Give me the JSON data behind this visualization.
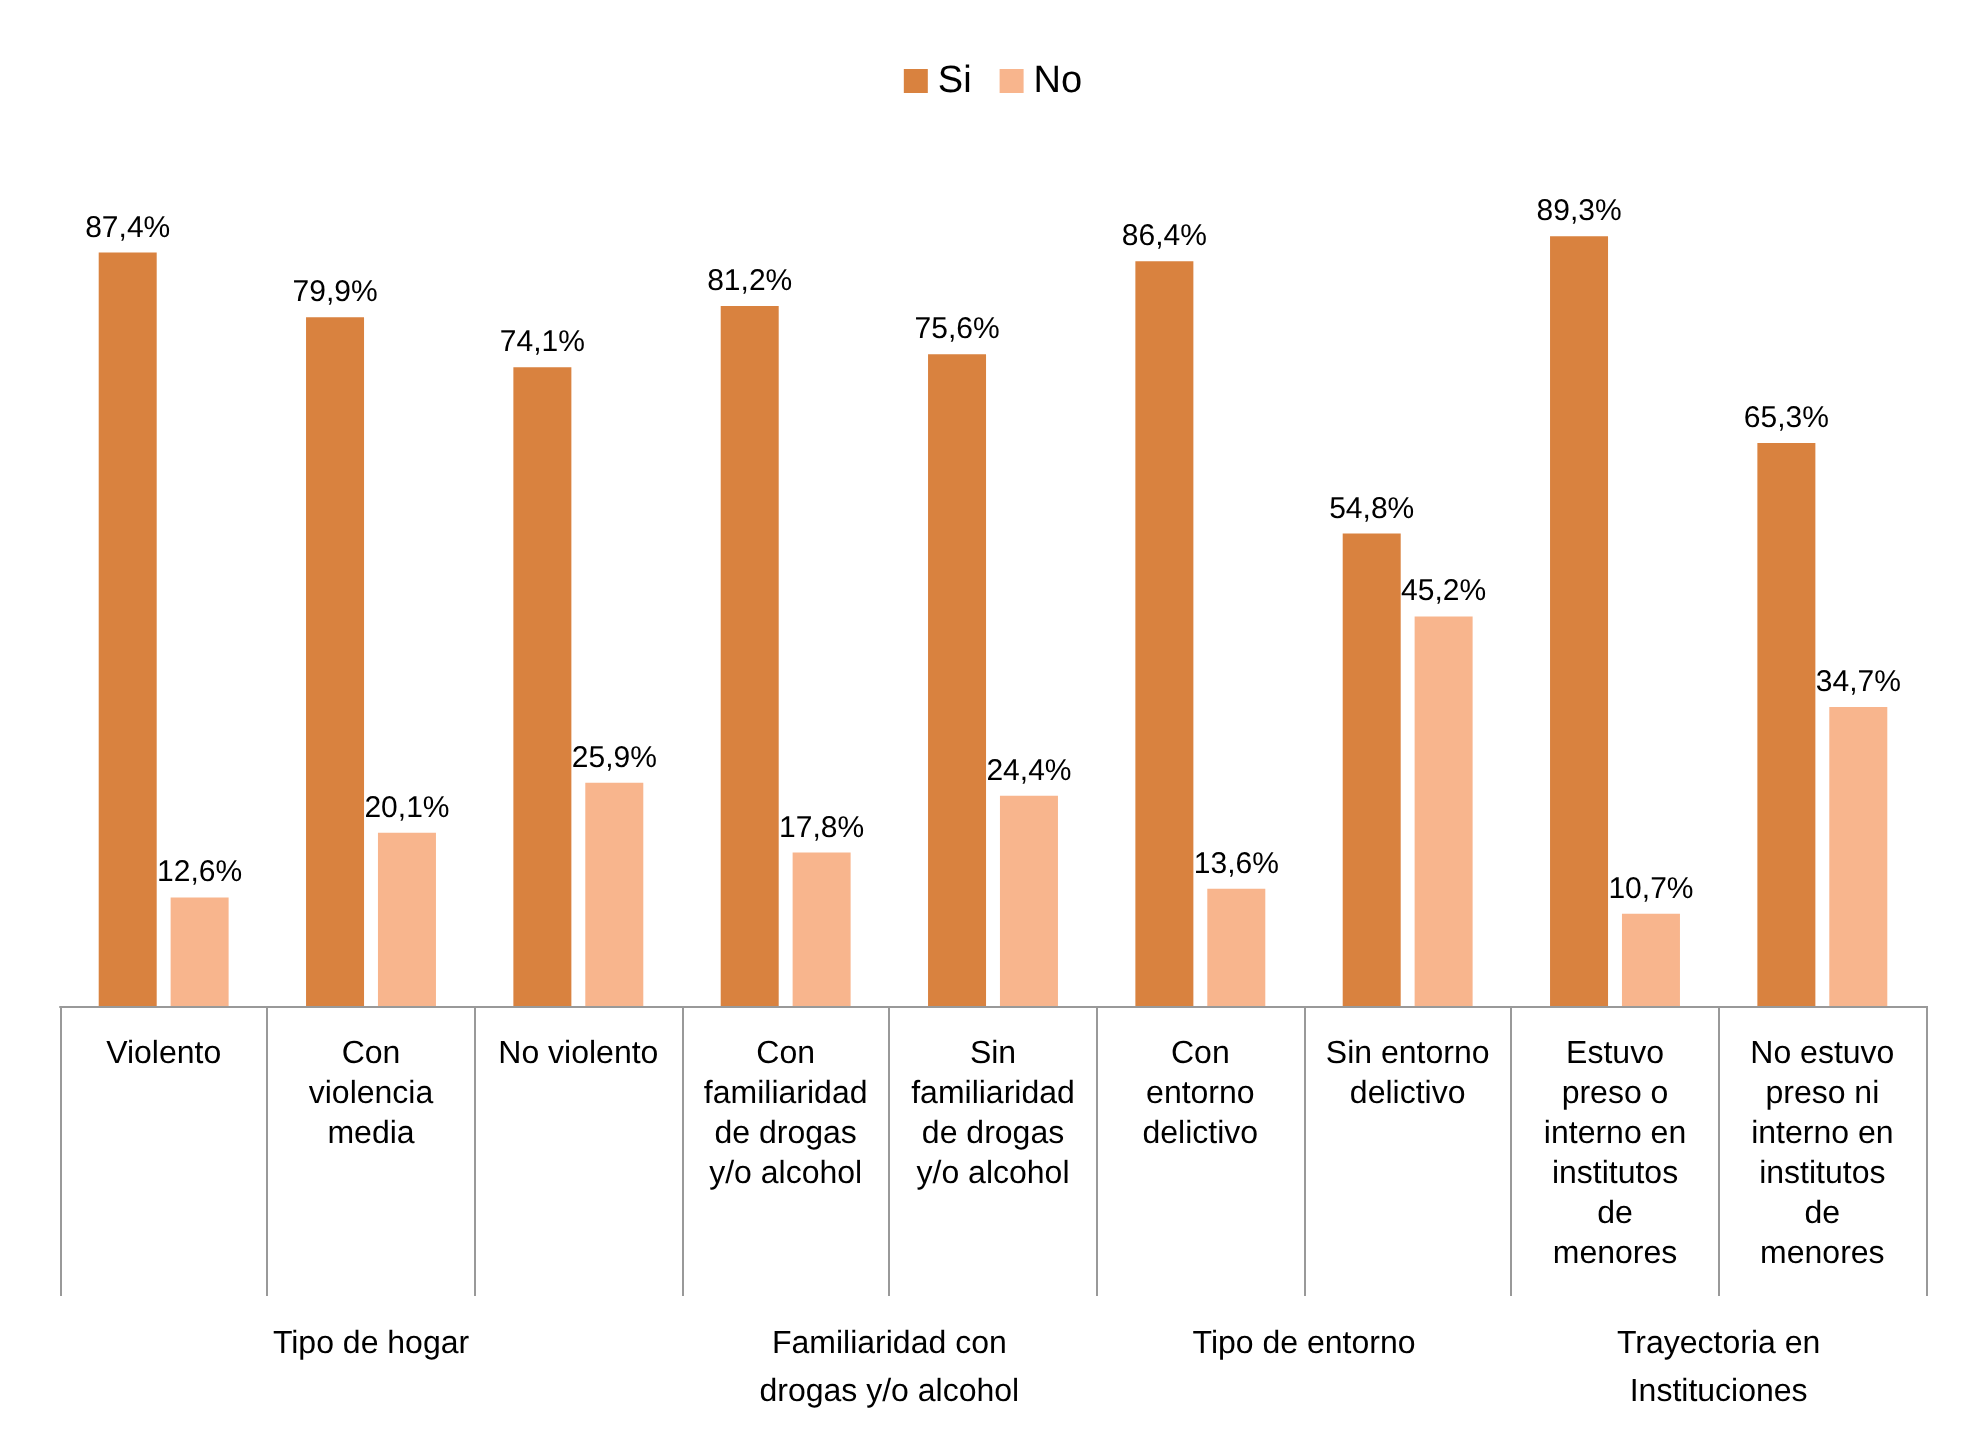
{
  "chart_data": {
    "type": "bar",
    "categories": [
      "Violento",
      "Con\nviolencia\nmedia",
      "No violento",
      "Con\nfamiliaridad\nde drogas\ny/o alcohol",
      "Sin\nfamiliaridad\nde drogas\ny/o alcohol",
      "Con\nentorno\ndelictivo",
      "Sin entorno\ndelictivo",
      "Estuvo\npreso o\ninterno en\ninstitutos\nde\nmenores",
      "No estuvo\npreso ni\ninterno en\ninstitutos\nde\nmenores"
    ],
    "series": [
      {
        "name": "Si",
        "color": "#d9823f",
        "values": [
          87.4,
          79.9,
          74.1,
          81.2,
          75.6,
          86.4,
          54.8,
          89.3,
          65.3
        ],
        "value_labels": [
          "87,4%",
          "79,9%",
          "74,1%",
          "81,2%",
          "75,6%",
          "86,4%",
          "54,8%",
          "89,3%",
          "65,3%"
        ]
      },
      {
        "name": "No",
        "color": "#f8b58d",
        "values": [
          12.6,
          20.1,
          25.9,
          17.8,
          24.4,
          13.6,
          45.2,
          10.7,
          34.7
        ],
        "value_labels": [
          "12,6%",
          "20,1%",
          "25,9%",
          "17,8%",
          "24,4%",
          "13,6%",
          "45,2%",
          "10,7%",
          "34,7%"
        ]
      }
    ],
    "annotations": [
      "Tipo de hogar",
      "Familiaridad con\ndrogas y/o alcohol",
      "Tipo de entorno",
      "Trayectoria en\nInstituciones"
    ],
    "legend": "top",
    "grid": false
  }
}
